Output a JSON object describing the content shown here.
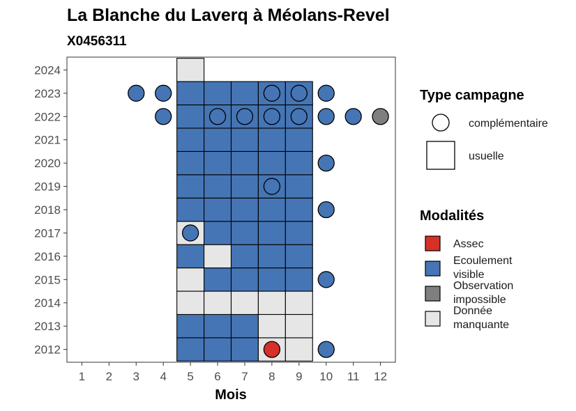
{
  "chart_data": {
    "type": "heatmap",
    "title": "La Blanche du Laverq à Méolans-Revel",
    "subtitle": "X0456311",
    "xlabel": "Mois",
    "ylabel": "",
    "x_ticks": [
      "1",
      "2",
      "3",
      "4",
      "5",
      "6",
      "7",
      "8",
      "9",
      "10",
      "11",
      "12"
    ],
    "y_ticks": [
      "2012",
      "2013",
      "2014",
      "2015",
      "2016",
      "2017",
      "2018",
      "2019",
      "2020",
      "2021",
      "2022",
      "2023",
      "2024"
    ],
    "colors": {
      "Assec": "#d73027",
      "Ecoulement visible": "#4575b4",
      "Observation impossible": "#7f7f7f",
      "Donnée manquante": "#e6e6e6"
    },
    "usuelle": [
      {
        "year": 2012,
        "month": 5,
        "m": "Ecoulement visible"
      },
      {
        "year": 2012,
        "month": 6,
        "m": "Ecoulement visible"
      },
      {
        "year": 2012,
        "month": 7,
        "m": "Ecoulement visible"
      },
      {
        "year": 2012,
        "month": 8,
        "m": "Donnée manquante"
      },
      {
        "year": 2012,
        "month": 9,
        "m": "Donnée manquante"
      },
      {
        "year": 2013,
        "month": 5,
        "m": "Ecoulement visible"
      },
      {
        "year": 2013,
        "month": 6,
        "m": "Ecoulement visible"
      },
      {
        "year": 2013,
        "month": 7,
        "m": "Ecoulement visible"
      },
      {
        "year": 2013,
        "month": 8,
        "m": "Donnée manquante"
      },
      {
        "year": 2013,
        "month": 9,
        "m": "Donnée manquante"
      },
      {
        "year": 2014,
        "month": 5,
        "m": "Donnée manquante"
      },
      {
        "year": 2014,
        "month": 6,
        "m": "Donnée manquante"
      },
      {
        "year": 2014,
        "month": 7,
        "m": "Donnée manquante"
      },
      {
        "year": 2014,
        "month": 8,
        "m": "Donnée manquante"
      },
      {
        "year": 2014,
        "month": 9,
        "m": "Donnée manquante"
      },
      {
        "year": 2015,
        "month": 5,
        "m": "Donnée manquante"
      },
      {
        "year": 2015,
        "month": 6,
        "m": "Ecoulement visible"
      },
      {
        "year": 2015,
        "month": 7,
        "m": "Ecoulement visible"
      },
      {
        "year": 2015,
        "month": 8,
        "m": "Ecoulement visible"
      },
      {
        "year": 2015,
        "month": 9,
        "m": "Ecoulement visible"
      },
      {
        "year": 2016,
        "month": 5,
        "m": "Ecoulement visible"
      },
      {
        "year": 2016,
        "month": 6,
        "m": "Donnée manquante"
      },
      {
        "year": 2016,
        "month": 7,
        "m": "Ecoulement visible"
      },
      {
        "year": 2016,
        "month": 8,
        "m": "Ecoulement visible"
      },
      {
        "year": 2016,
        "month": 9,
        "m": "Ecoulement visible"
      },
      {
        "year": 2017,
        "month": 5,
        "m": "Donnée manquante"
      },
      {
        "year": 2017,
        "month": 6,
        "m": "Ecoulement visible"
      },
      {
        "year": 2017,
        "month": 7,
        "m": "Ecoulement visible"
      },
      {
        "year": 2017,
        "month": 8,
        "m": "Ecoulement visible"
      },
      {
        "year": 2017,
        "month": 9,
        "m": "Ecoulement visible"
      },
      {
        "year": 2018,
        "month": 5,
        "m": "Ecoulement visible"
      },
      {
        "year": 2018,
        "month": 6,
        "m": "Ecoulement visible"
      },
      {
        "year": 2018,
        "month": 7,
        "m": "Ecoulement visible"
      },
      {
        "year": 2018,
        "month": 8,
        "m": "Ecoulement visible"
      },
      {
        "year": 2018,
        "month": 9,
        "m": "Ecoulement visible"
      },
      {
        "year": 2019,
        "month": 5,
        "m": "Ecoulement visible"
      },
      {
        "year": 2019,
        "month": 6,
        "m": "Ecoulement visible"
      },
      {
        "year": 2019,
        "month": 7,
        "m": "Ecoulement visible"
      },
      {
        "year": 2019,
        "month": 8,
        "m": "Ecoulement visible"
      },
      {
        "year": 2019,
        "month": 9,
        "m": "Ecoulement visible"
      },
      {
        "year": 2020,
        "month": 5,
        "m": "Ecoulement visible"
      },
      {
        "year": 2020,
        "month": 6,
        "m": "Ecoulement visible"
      },
      {
        "year": 2020,
        "month": 7,
        "m": "Ecoulement visible"
      },
      {
        "year": 2020,
        "month": 8,
        "m": "Ecoulement visible"
      },
      {
        "year": 2020,
        "month": 9,
        "m": "Ecoulement visible"
      },
      {
        "year": 2021,
        "month": 5,
        "m": "Ecoulement visible"
      },
      {
        "year": 2021,
        "month": 6,
        "m": "Ecoulement visible"
      },
      {
        "year": 2021,
        "month": 7,
        "m": "Ecoulement visible"
      },
      {
        "year": 2021,
        "month": 8,
        "m": "Ecoulement visible"
      },
      {
        "year": 2021,
        "month": 9,
        "m": "Ecoulement visible"
      },
      {
        "year": 2022,
        "month": 5,
        "m": "Ecoulement visible"
      },
      {
        "year": 2022,
        "month": 6,
        "m": "Ecoulement visible"
      },
      {
        "year": 2022,
        "month": 7,
        "m": "Ecoulement visible"
      },
      {
        "year": 2022,
        "month": 8,
        "m": "Ecoulement visible"
      },
      {
        "year": 2022,
        "month": 9,
        "m": "Ecoulement visible"
      },
      {
        "year": 2023,
        "month": 5,
        "m": "Ecoulement visible"
      },
      {
        "year": 2023,
        "month": 6,
        "m": "Ecoulement visible"
      },
      {
        "year": 2023,
        "month": 7,
        "m": "Ecoulement visible"
      },
      {
        "year": 2023,
        "month": 8,
        "m": "Ecoulement visible"
      },
      {
        "year": 2023,
        "month": 9,
        "m": "Ecoulement visible"
      },
      {
        "year": 2024,
        "month": 5,
        "m": "Donnée manquante"
      }
    ],
    "complementaire": [
      {
        "year": 2012,
        "month": 8,
        "m": "Assec"
      },
      {
        "year": 2012,
        "month": 10,
        "m": "Ecoulement visible"
      },
      {
        "year": 2015,
        "month": 10,
        "m": "Ecoulement visible"
      },
      {
        "year": 2017,
        "month": 5,
        "m": "Ecoulement visible"
      },
      {
        "year": 2018,
        "month": 10,
        "m": "Ecoulement visible"
      },
      {
        "year": 2019,
        "month": 8,
        "m": "Ecoulement visible"
      },
      {
        "year": 2020,
        "month": 10,
        "m": "Ecoulement visible"
      },
      {
        "year": 2022,
        "month": 4,
        "m": "Ecoulement visible"
      },
      {
        "year": 2022,
        "month": 6,
        "m": "Ecoulement visible"
      },
      {
        "year": 2022,
        "month": 7,
        "m": "Ecoulement visible"
      },
      {
        "year": 2022,
        "month": 8,
        "m": "Ecoulement visible"
      },
      {
        "year": 2022,
        "month": 9,
        "m": "Ecoulement visible"
      },
      {
        "year": 2022,
        "month": 10,
        "m": "Ecoulement visible"
      },
      {
        "year": 2022,
        "month": 11,
        "m": "Ecoulement visible"
      },
      {
        "year": 2022,
        "month": 12,
        "m": "Observation impossible"
      },
      {
        "year": 2023,
        "month": 3,
        "m": "Ecoulement visible"
      },
      {
        "year": 2023,
        "month": 4,
        "m": "Ecoulement visible"
      },
      {
        "year": 2023,
        "month": 8,
        "m": "Ecoulement visible"
      },
      {
        "year": 2023,
        "month": 9,
        "m": "Ecoulement visible"
      },
      {
        "year": 2023,
        "month": 10,
        "m": "Ecoulement visible"
      }
    ],
    "legend": {
      "shape_title": "Type campagne",
      "shape_items": [
        "complémentaire",
        "usuelle"
      ],
      "fill_title": "Modalités",
      "fill_items": [
        {
          "key": "Assec",
          "lines": [
            "Assec"
          ]
        },
        {
          "key": "Ecoulement visible",
          "lines": [
            "Ecoulement",
            "visible"
          ]
        },
        {
          "key": "Observation impossible",
          "lines": [
            "Observation",
            "impossible"
          ]
        },
        {
          "key": "Donnée manquante",
          "lines": [
            "Donnée",
            "manquante"
          ]
        }
      ]
    }
  }
}
